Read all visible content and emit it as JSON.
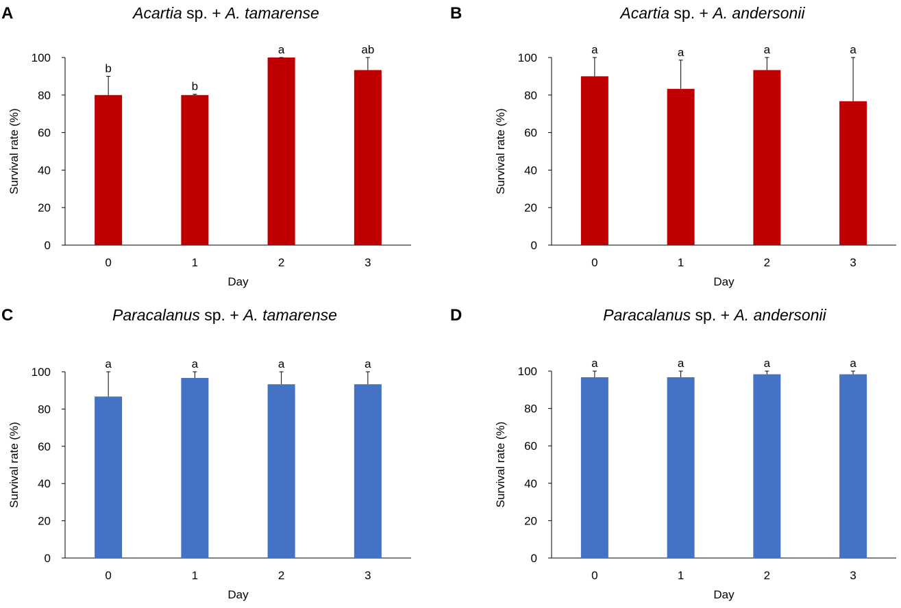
{
  "figure": {
    "shared": {
      "xlabel": "Day",
      "ylabel": "Survival rate (%)",
      "categories": [
        "0",
        "1",
        "2",
        "3"
      ],
      "yticks": [
        0,
        20,
        40,
        60,
        80,
        100
      ],
      "ylim": [
        0,
        100
      ]
    }
  },
  "chart_data": [
    {
      "type": "bar",
      "panel_label": "A",
      "title_italic": "Acartia",
      "title_mid": " sp. + ",
      "title_italic2": "A. tamarense",
      "xlabel": "Day",
      "ylabel": "Survival rate (%)",
      "categories": [
        "0",
        "1",
        "2",
        "3"
      ],
      "values": [
        80,
        80,
        100,
        93.3
      ],
      "errors": [
        10,
        0.4,
        0.4,
        6.7
      ],
      "letters": [
        "b",
        "b",
        "a",
        "ab"
      ],
      "ylim": [
        0,
        100
      ],
      "color": "#c00000"
    },
    {
      "type": "bar",
      "panel_label": "B",
      "title_italic": "Acartia",
      "title_mid": " sp. + ",
      "title_italic2": "A. andersonii",
      "xlabel": "Day",
      "ylabel": "Survival rate (%)",
      "categories": [
        "0",
        "1",
        "2",
        "3"
      ],
      "values": [
        90,
        83.3,
        93.3,
        76.7
      ],
      "errors": [
        10,
        15.3,
        6.7,
        23.3
      ],
      "letters": [
        "a",
        "a",
        "a",
        "a"
      ],
      "ylim": [
        0,
        100
      ],
      "color": "#c00000"
    },
    {
      "type": "bar",
      "panel_label": "C",
      "title_italic": "Paracalanus",
      "title_mid": " sp. + ",
      "title_italic2": "A. tamarense",
      "xlabel": "Day",
      "ylabel": "Survival rate (%)",
      "categories": [
        "0",
        "1",
        "2",
        "3"
      ],
      "values": [
        86.7,
        96.7,
        93.3,
        93.3
      ],
      "errors": [
        13.3,
        3.3,
        6.7,
        6.7
      ],
      "letters": [
        "a",
        "a",
        "a",
        "a"
      ],
      "ylim": [
        0,
        100
      ],
      "color": "#4472c4"
    },
    {
      "type": "bar",
      "panel_label": "D",
      "title_italic": "Paracalanus",
      "title_mid": " sp. + ",
      "title_italic2": "A. andersonii",
      "xlabel": "Day",
      "ylabel": "Survival rate (%)",
      "categories": [
        "0",
        "1",
        "2",
        "3"
      ],
      "values": [
        96.7,
        96.7,
        98.3,
        98.3
      ],
      "errors": [
        3.3,
        3.3,
        1.7,
        1.7
      ],
      "letters": [
        "a",
        "a",
        "a",
        "a"
      ],
      "ylim": [
        0,
        100
      ],
      "color": "#4472c4"
    }
  ]
}
